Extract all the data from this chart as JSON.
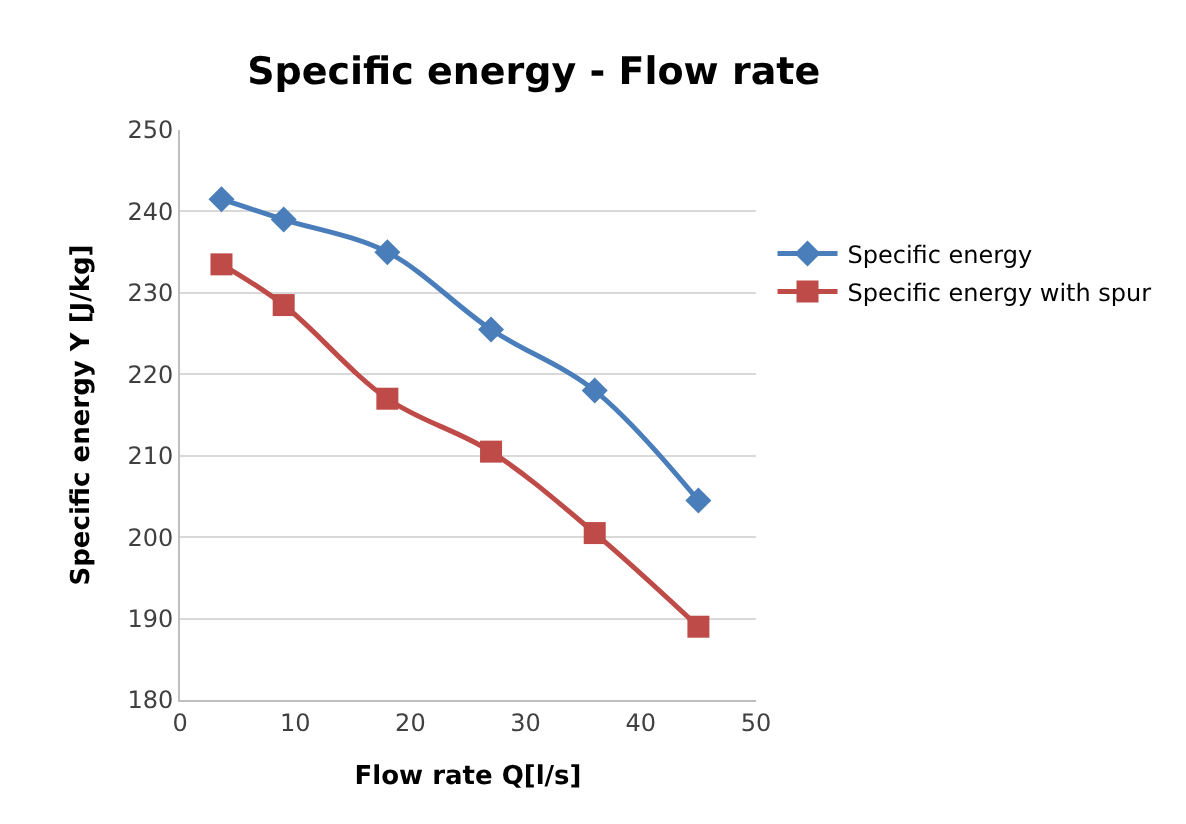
{
  "chart_data": {
    "type": "line",
    "title": "Specific energy - Flow rate",
    "xlabel": "Flow rate Q[l/s]",
    "ylabel": "Specific energy Y [J/kg]",
    "x": [
      3.6,
      9,
      18,
      27,
      36,
      45
    ],
    "series": [
      {
        "name": "Specific energy",
        "color": "#4a7ebb",
        "marker": "diamond",
        "values": [
          241.5,
          239,
          235,
          225.5,
          218,
          204.5
        ]
      },
      {
        "name": "Specific energy with spur",
        "color": "#be4b48",
        "marker": "square",
        "values": [
          233.5,
          228.5,
          217,
          210.5,
          200.5,
          189
        ]
      }
    ],
    "xlim": [
      0,
      50
    ],
    "xticks": [
      0,
      10,
      20,
      30,
      40,
      50
    ],
    "ylim": [
      180,
      250
    ],
    "yticks": [
      180,
      190,
      200,
      210,
      220,
      230,
      240,
      250
    ],
    "grid": "y",
    "legend": "right",
    "line_style": "solid"
  }
}
